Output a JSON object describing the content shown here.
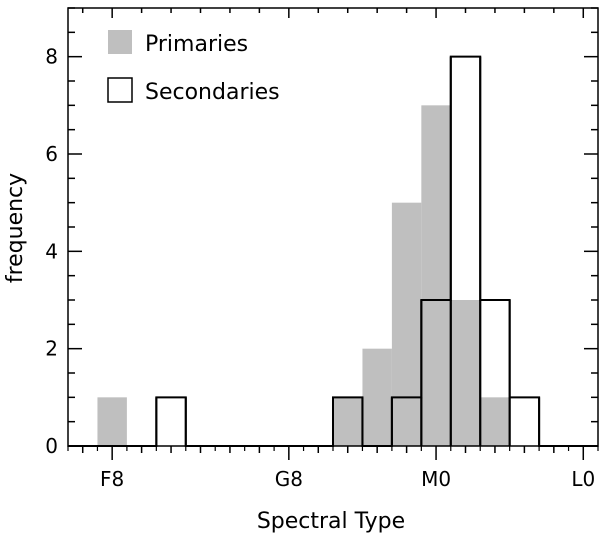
{
  "chart_data": {
    "type": "bar",
    "histogram": true,
    "xlabel": "Spectral Type",
    "ylabel": "frequency",
    "ylim": [
      0,
      9
    ],
    "bin_index_range": [
      -0.5,
      17.5
    ],
    "x_tick_labels": [
      {
        "label": "F8",
        "bin_index": 1
      },
      {
        "label": "G8",
        "bin_index": 7
      },
      {
        "label": "M0",
        "bin_index": 12
      },
      {
        "label": "L0",
        "bin_index": 17
      }
    ],
    "y_ticks": [
      0,
      2,
      4,
      6,
      8
    ],
    "series": [
      {
        "name": "Primaries",
        "style": "filled",
        "color": "#bfbfbf",
        "values": [
          0,
          1,
          0,
          0,
          0,
          0,
          0,
          0,
          0,
          1,
          2,
          5,
          7,
          3,
          1,
          0,
          0,
          0
        ]
      },
      {
        "name": "Secondaries",
        "style": "outline",
        "color": "#000000",
        "values": [
          0,
          0,
          0,
          1,
          0,
          0,
          0,
          0,
          0,
          1,
          0,
          1,
          3,
          8,
          3,
          1,
          0,
          0
        ]
      }
    ],
    "legend_position": "top-left",
    "grid": false
  }
}
